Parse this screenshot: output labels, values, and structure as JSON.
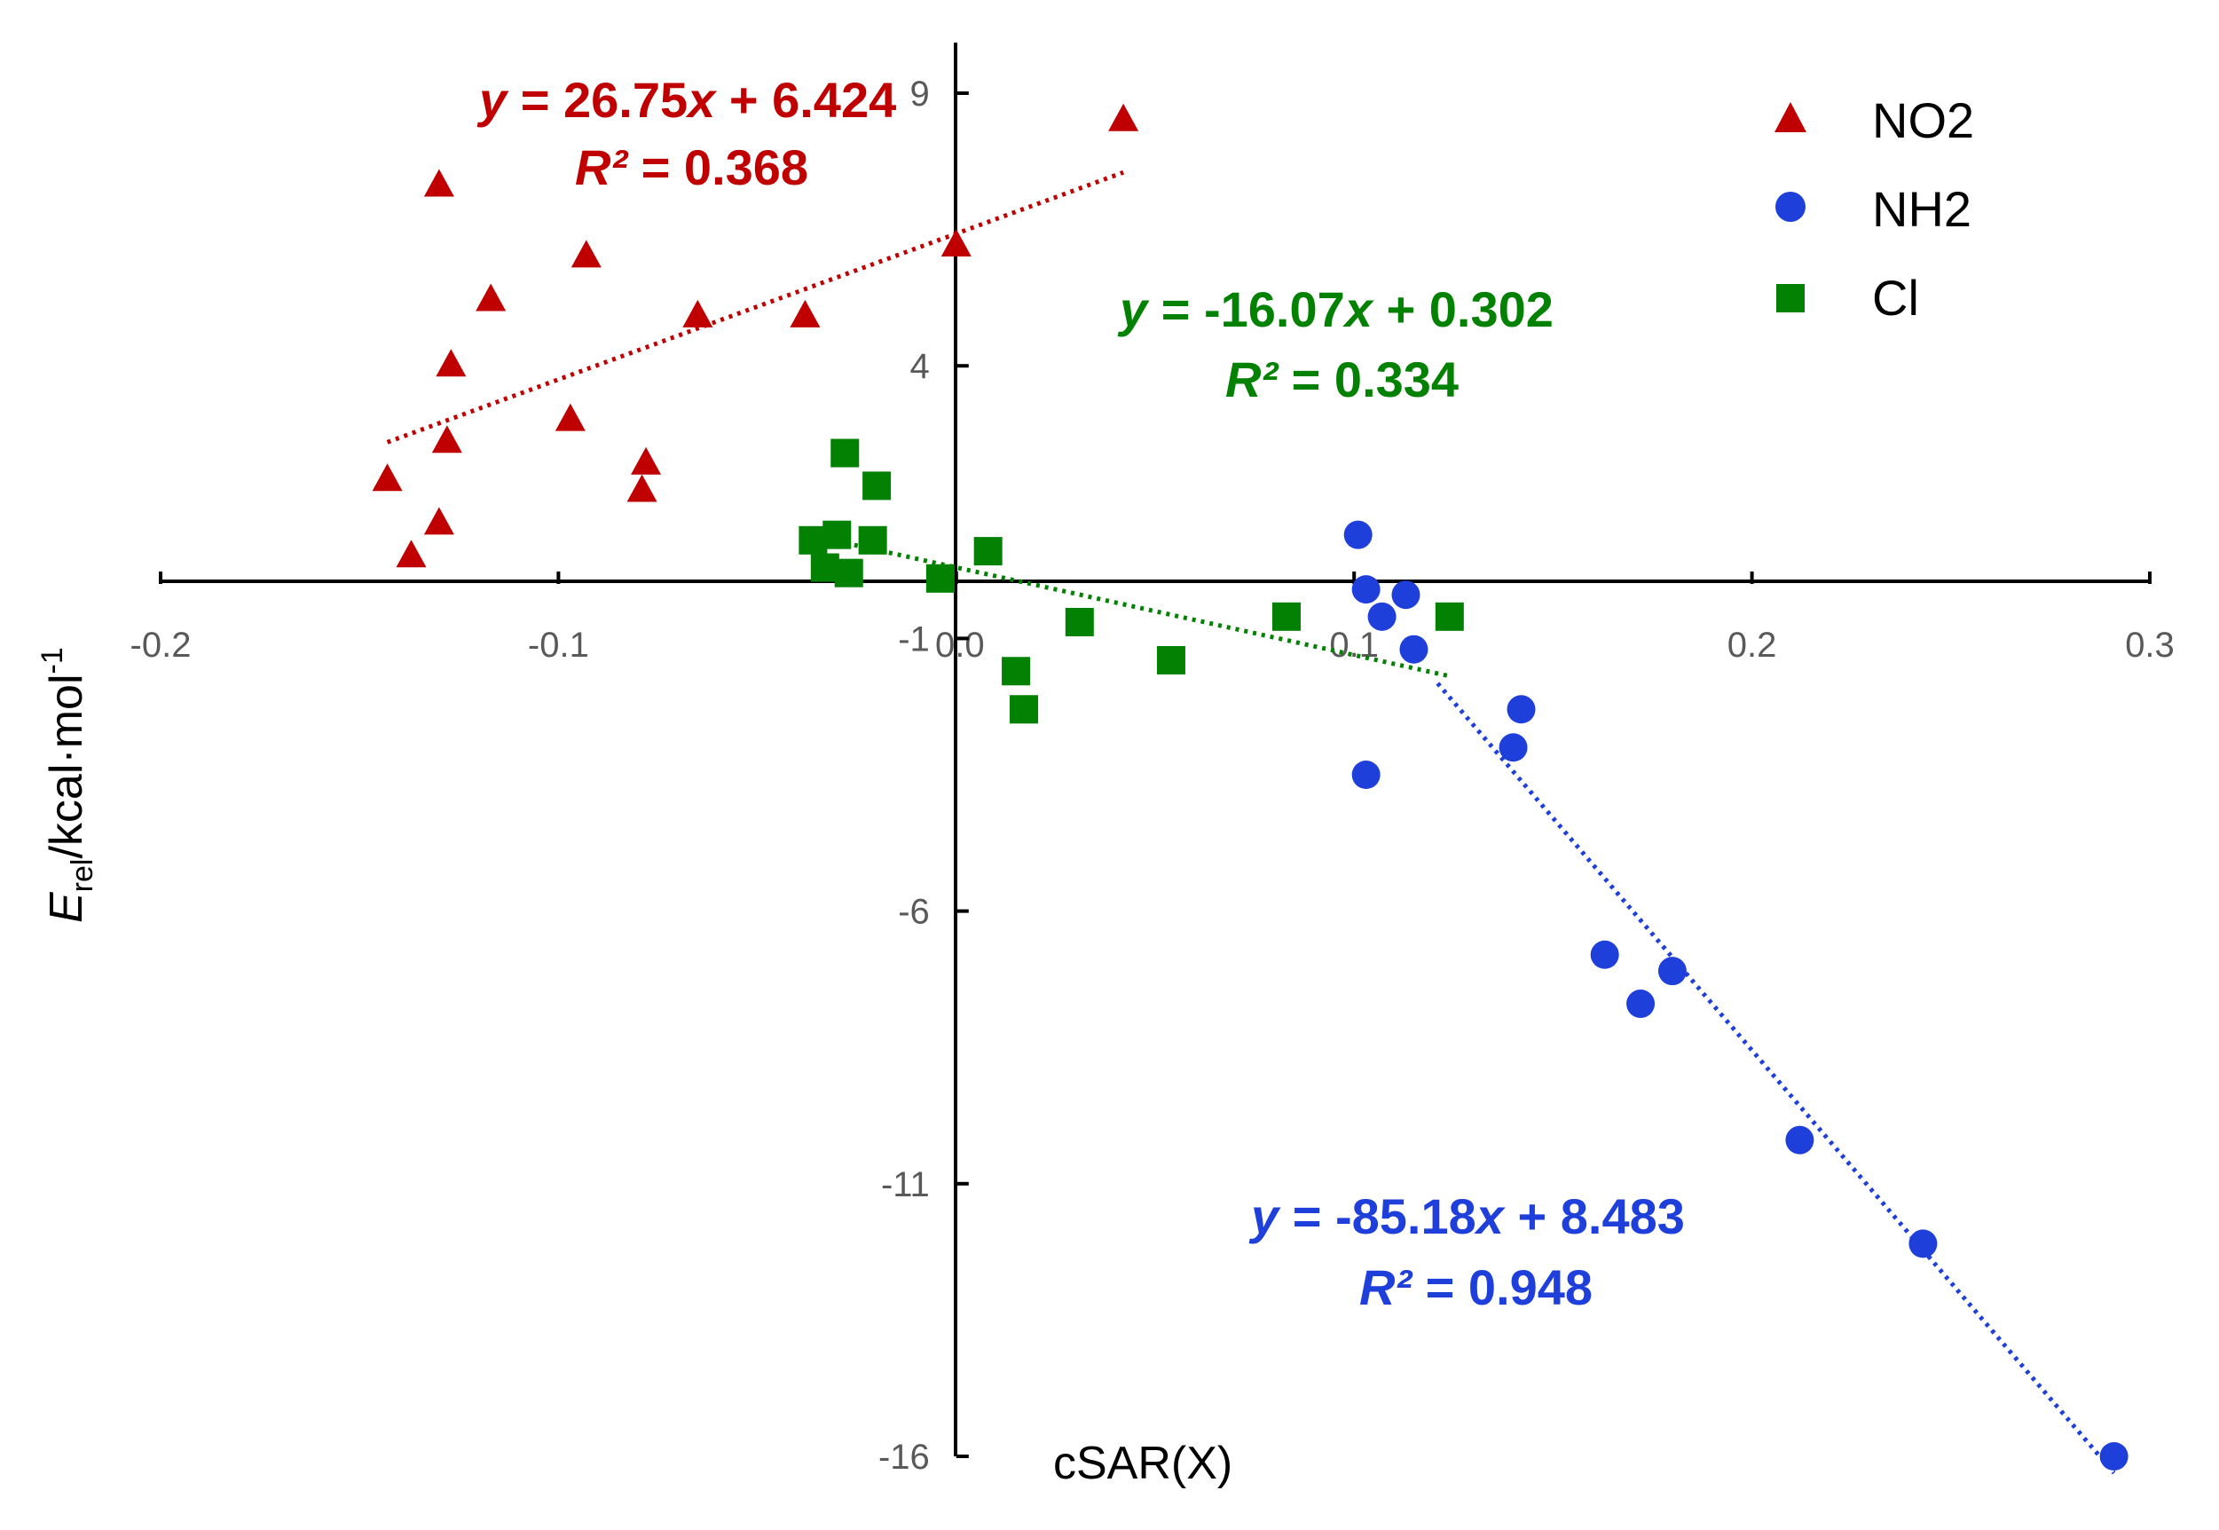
{
  "chart_data": {
    "type": "scatter",
    "title": "",
    "xlabel": "cSAR(X)",
    "ylabel": {
      "main": "E",
      "sub": "rel",
      "rest": "/kcal·mol",
      "sup": "-1"
    },
    "xlim": [
      -0.2,
      0.3
    ],
    "ylim": [
      -16,
      9
    ],
    "x_ticks": [
      -0.2,
      -0.1,
      0.0,
      0.1,
      0.2,
      0.3
    ],
    "x_tick_labels": [
      "-0.2",
      "-0.1",
      "0.0",
      "0.1",
      "0.2",
      "0.3"
    ],
    "y_ticks": [
      9,
      4,
      -1,
      -6,
      -11,
      -16
    ],
    "y_tick_labels": [
      "9",
      "4",
      "-1",
      "-6",
      "-11",
      "-16"
    ],
    "grid": false,
    "legend_position": "top-right",
    "series": [
      {
        "name": "NO2",
        "color": "#C00000",
        "marker": "triangle",
        "points": [
          [
            -0.143,
            1.9
          ],
          [
            -0.137,
            0.5
          ],
          [
            -0.13,
            7.3
          ],
          [
            -0.13,
            1.1
          ],
          [
            -0.128,
            2.6
          ],
          [
            -0.127,
            4.0
          ],
          [
            -0.117,
            5.2
          ],
          [
            -0.097,
            3.0
          ],
          [
            -0.093,
            6.0
          ],
          [
            -0.078,
            2.2
          ],
          [
            -0.079,
            1.7
          ],
          [
            -0.065,
            4.9
          ],
          [
            -0.038,
            4.9
          ],
          [
            0.0,
            6.2
          ],
          [
            0.042,
            8.5
          ]
        ],
        "trendline": {
          "x_range": [
            -0.143,
            0.042
          ],
          "slope": 26.75,
          "intercept": 6.424,
          "line1": "= 26.75",
          "line1_end": "+ 6.424",
          "r2": "= 0.368"
        }
      },
      {
        "name": "NH2",
        "color": "#1F3FDB",
        "marker": "circle",
        "points": [
          [
            0.101,
            0.9
          ],
          [
            0.103,
            -0.1
          ],
          [
            0.107,
            -0.6
          ],
          [
            0.113,
            -0.2
          ],
          [
            0.115,
            -1.2
          ],
          [
            0.103,
            -3.5
          ],
          [
            0.142,
            -2.3
          ],
          [
            0.14,
            -3.0
          ],
          [
            0.163,
            -6.8
          ],
          [
            0.172,
            -7.7
          ],
          [
            0.18,
            -7.1
          ],
          [
            0.212,
            -10.2
          ],
          [
            0.243,
            -12.1
          ],
          [
            0.291,
            -16.0
          ]
        ],
        "trendline": {
          "x_range": [
            0.121,
            0.291
          ],
          "slope": -85.18,
          "intercept": 8.483,
          "line1": "= -85.18",
          "line1_end": "+ 8.483",
          "r2": "= 0.948"
        }
      },
      {
        "name": "Cl",
        "color": "#038103",
        "marker": "square",
        "points": [
          [
            -0.036,
            0.8
          ],
          [
            -0.033,
            0.3
          ],
          [
            -0.03,
            0.9
          ],
          [
            -0.028,
            2.4
          ],
          [
            -0.027,
            0.2
          ],
          [
            -0.021,
            0.8
          ],
          [
            -0.02,
            1.8
          ],
          [
            -0.004,
            0.1
          ],
          [
            0.008,
            0.6
          ],
          [
            0.015,
            -1.6
          ],
          [
            0.017,
            -2.3
          ],
          [
            0.031,
            -0.7
          ],
          [
            0.054,
            -1.4
          ],
          [
            0.083,
            -0.6
          ],
          [
            0.124,
            -0.6
          ]
        ],
        "trendline": {
          "x_range": [
            -0.03,
            0.124
          ],
          "slope": -16.07,
          "intercept": 0.302,
          "line1": "= -16.07",
          "line1_end": "+ 0.302",
          "r2": "= 0.334"
        }
      }
    ],
    "equation_symbols": {
      "y": "y",
      "x": "x",
      "r2": "R²"
    }
  }
}
